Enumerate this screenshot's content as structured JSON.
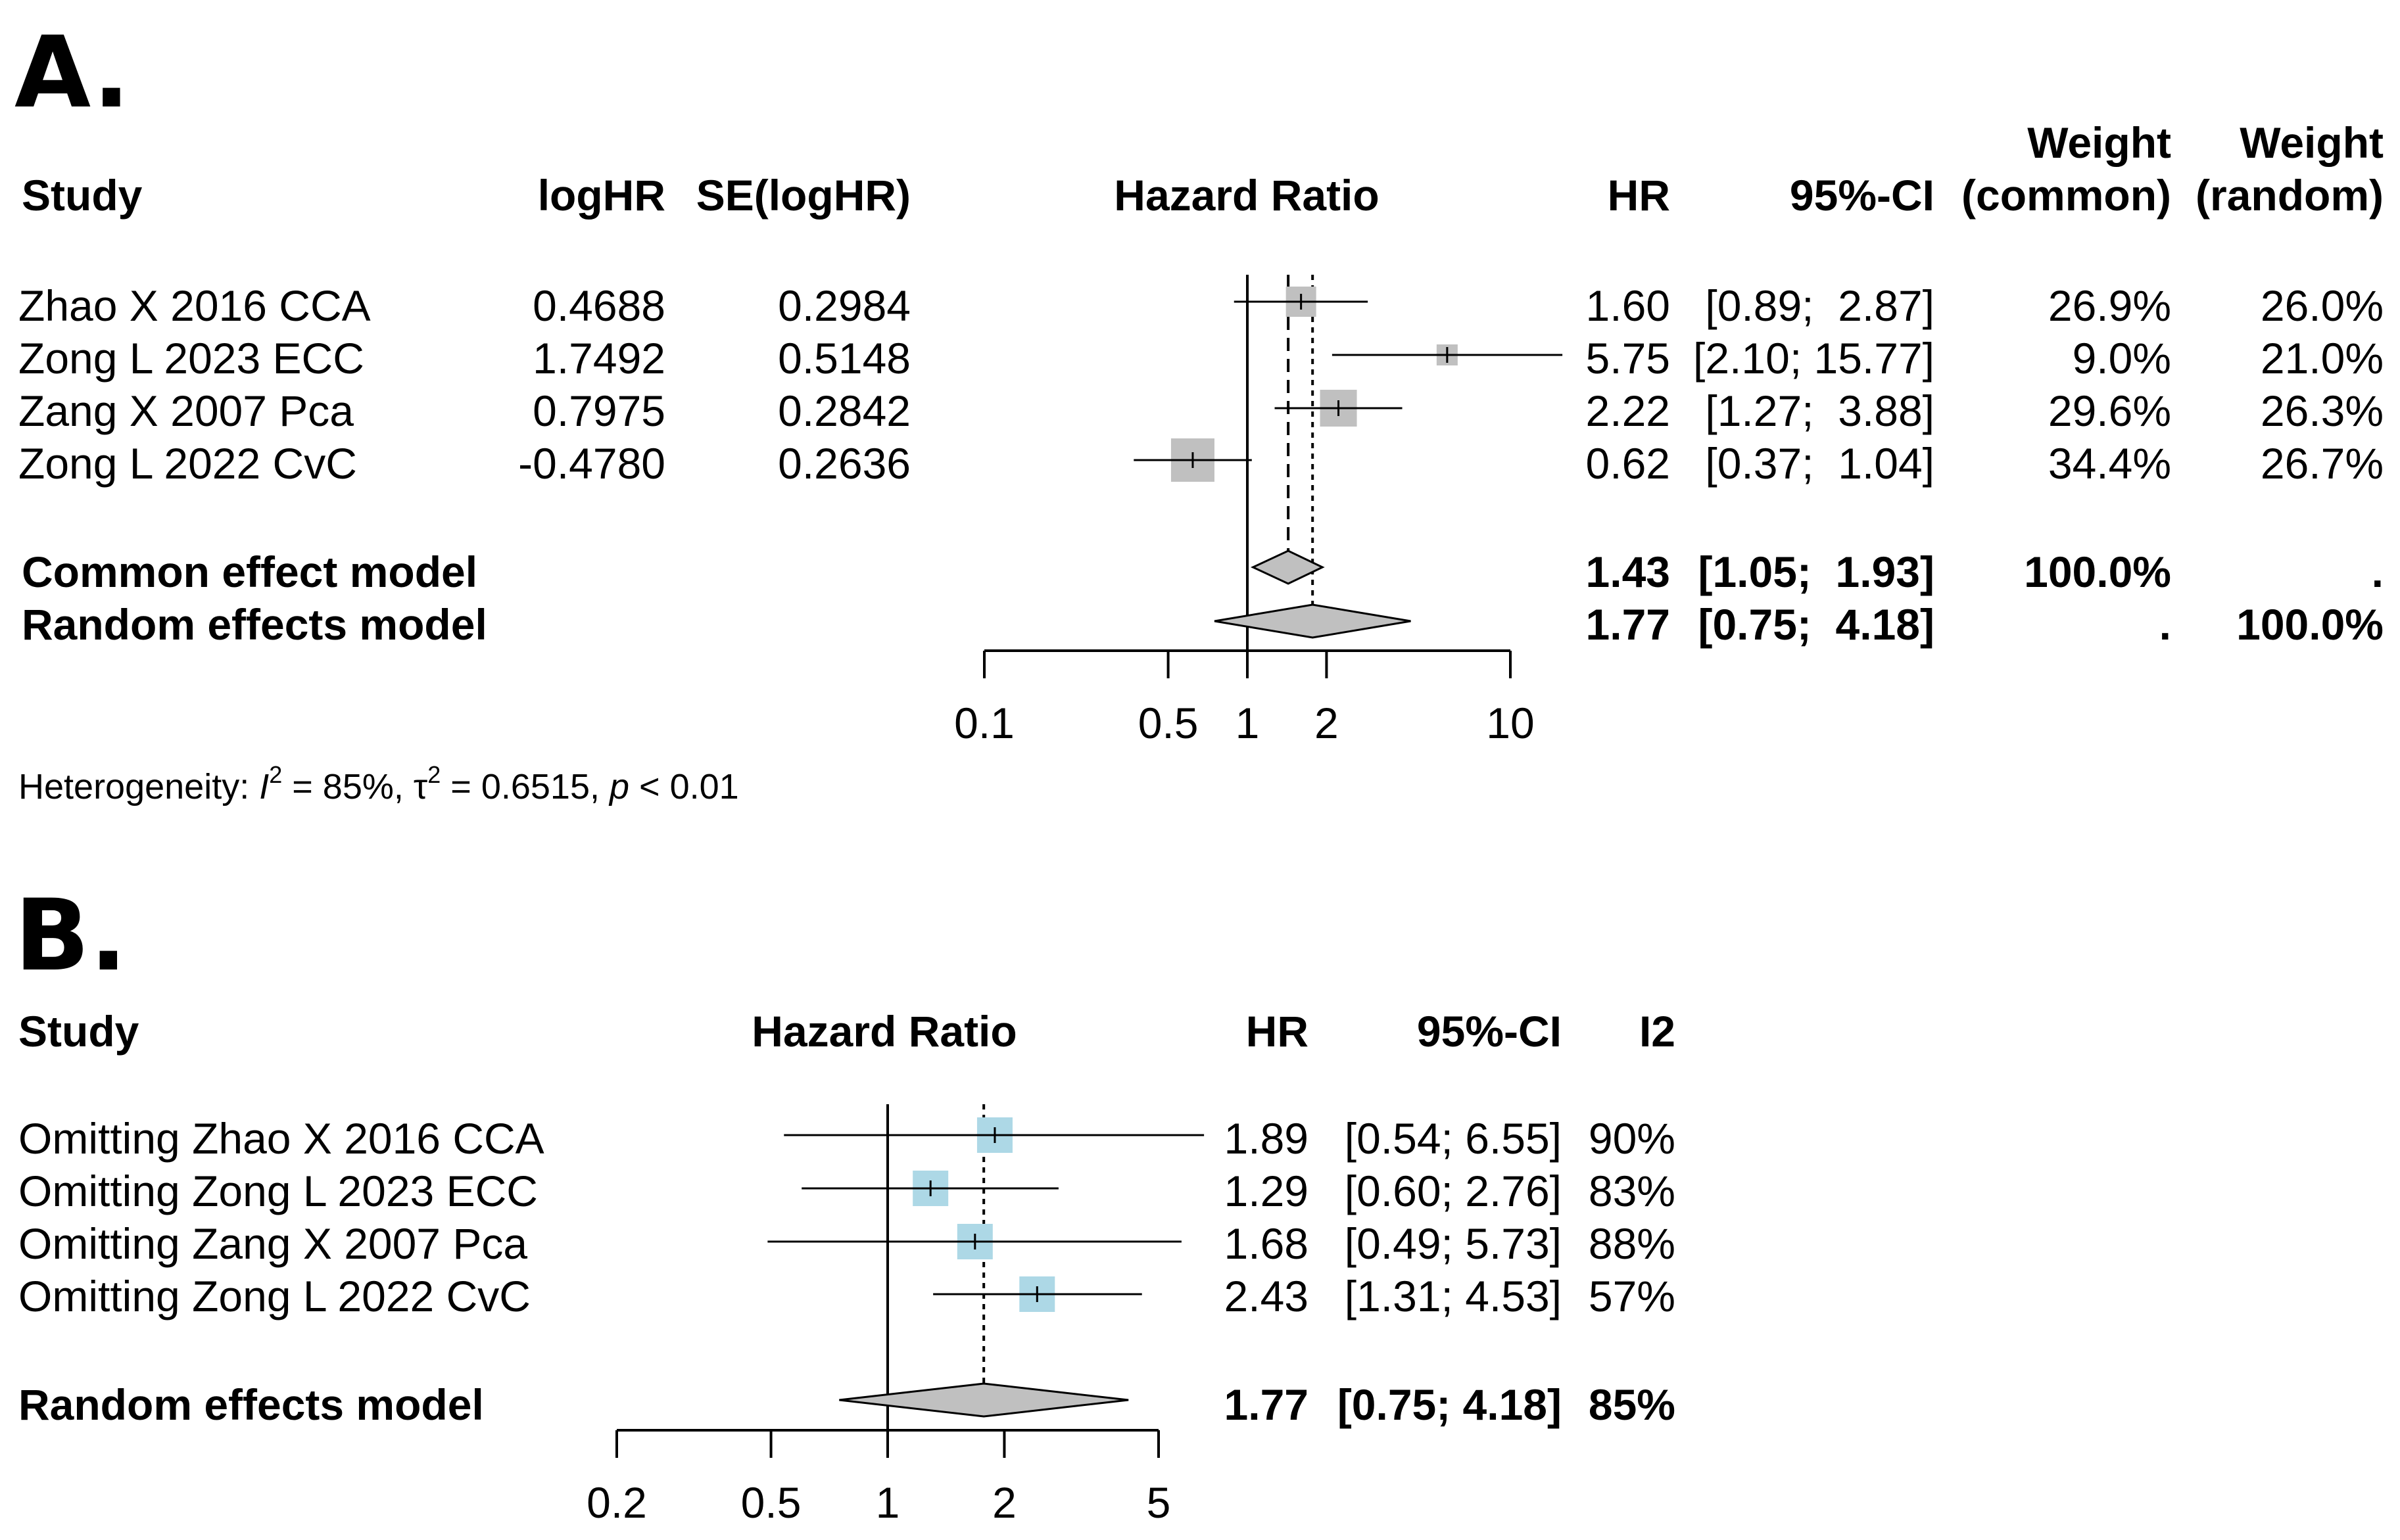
{
  "chart_data": [
    {
      "type": "forest",
      "panel_label": "A.",
      "headers": {
        "study": "Study",
        "loghr": "logHR",
        "se": "SE(logHR)",
        "plot": "Hazard Ratio",
        "hr": "HR",
        "ci": "95%-CI",
        "weight_common_1": "Weight",
        "weight_common_2": "(common)",
        "weight_random_1": "Weight",
        "weight_random_2": "(random)"
      },
      "studies": [
        {
          "name": "Zhao X 2016 CCA",
          "loghr": "0.4688",
          "se": "0.2984",
          "hr": 1.6,
          "lower": 0.89,
          "upper": 2.87,
          "hr_text": "1.60",
          "ci_text": "[0.89;  2.87]",
          "w_common": "26.9%",
          "w_random": "26.0%"
        },
        {
          "name": "Zong L 2023 ECC",
          "loghr": "1.7492",
          "se": "0.5148",
          "hr": 5.75,
          "lower": 2.1,
          "upper": 15.77,
          "hr_text": "5.75",
          "ci_text": "[2.10; 15.77]",
          "w_common": "9.0%",
          "w_random": "21.0%"
        },
        {
          "name": "Zang X 2007 Pca",
          "loghr": "0.7975",
          "se": "0.2842",
          "hr": 2.22,
          "lower": 1.27,
          "upper": 3.88,
          "hr_text": "2.22",
          "ci_text": "[1.27;  3.88]",
          "w_common": "29.6%",
          "w_random": "26.3%"
        },
        {
          "name": "Zong L 2022 CvC",
          "loghr": "-0.4780",
          "se": "0.2636",
          "hr": 0.62,
          "lower": 0.37,
          "upper": 1.04,
          "hr_text": "0.62",
          "ci_text": "[0.37;  1.04]",
          "w_common": "34.4%",
          "w_random": "26.7%"
        }
      ],
      "models": [
        {
          "name": "Common effect model",
          "hr": 1.43,
          "lower": 1.05,
          "upper": 1.93,
          "hr_text": "1.43",
          "ci_text": "[1.05;  1.93]",
          "w_common": "100.0%",
          "w_random": "."
        },
        {
          "name": "Random effects model",
          "hr": 1.77,
          "lower": 0.75,
          "upper": 4.18,
          "hr_text": "1.77",
          "ci_text": "[0.75;  4.18]",
          "w_common": ".",
          "w_random": "100.0%"
        }
      ],
      "x_scale": "log",
      "xlim": [
        0.1,
        10
      ],
      "reference_line": 1,
      "ticks": [
        {
          "value": 0.1,
          "label": "0.1"
        },
        {
          "value": 0.5,
          "label": "0.5"
        },
        {
          "value": 1,
          "label": "1"
        },
        {
          "value": 2,
          "label": "2"
        },
        {
          "value": 10,
          "label": "10"
        }
      ],
      "heterogeneity": {
        "prefix": "Heterogeneity: ",
        "i2_symbol": "I",
        "i2_value": " = 85%, ",
        "tau_symbol": "τ",
        "tau_value": " = 0.6515, ",
        "p_symbol": "p",
        "p_value": " < 0.01"
      },
      "colors": {
        "square": "#c0c0c0",
        "diamond": "#c0c0c0"
      }
    },
    {
      "type": "forest",
      "panel_label": "B.",
      "headers": {
        "study": "Study",
        "plot": "Hazard Ratio",
        "hr": "HR",
        "ci": "95%-CI",
        "i2": "I2"
      },
      "studies": [
        {
          "name": "Omitting Zhao X 2016 CCA",
          "hr": 1.89,
          "lower": 0.54,
          "upper": 6.55,
          "hr_text": "1.89",
          "ci_text": "[0.54; 6.55]",
          "i2": "90%"
        },
        {
          "name": "Omitting Zong L 2023 ECC",
          "hr": 1.29,
          "lower": 0.6,
          "upper": 2.76,
          "hr_text": "1.29",
          "ci_text": "[0.60; 2.76]",
          "i2": "83%"
        },
        {
          "name": "Omitting Zang X 2007 Pca",
          "hr": 1.68,
          "lower": 0.49,
          "upper": 5.73,
          "hr_text": "1.68",
          "ci_text": "[0.49; 5.73]",
          "i2": "88%"
        },
        {
          "name": "Omitting Zong L 2022 CvC",
          "hr": 2.43,
          "lower": 1.31,
          "upper": 4.53,
          "hr_text": "2.43",
          "ci_text": "[1.31; 4.53]",
          "i2": "57%"
        }
      ],
      "models": [
        {
          "name": "Random effects model",
          "hr": 1.77,
          "lower": 0.75,
          "upper": 4.18,
          "hr_text": "1.77",
          "ci_text": "[0.75; 4.18]",
          "i2": "85%"
        }
      ],
      "x_scale": "log",
      "xlim": [
        0.2,
        5
      ],
      "reference_line": 1,
      "ticks": [
        {
          "value": 0.2,
          "label": "0.2"
        },
        {
          "value": 0.5,
          "label": "0.5"
        },
        {
          "value": 1,
          "label": "1"
        },
        {
          "value": 2,
          "label": "2"
        },
        {
          "value": 5,
          "label": "5"
        }
      ],
      "colors": {
        "square": "#add8e6",
        "diamond": "#c0c0c0"
      }
    }
  ]
}
